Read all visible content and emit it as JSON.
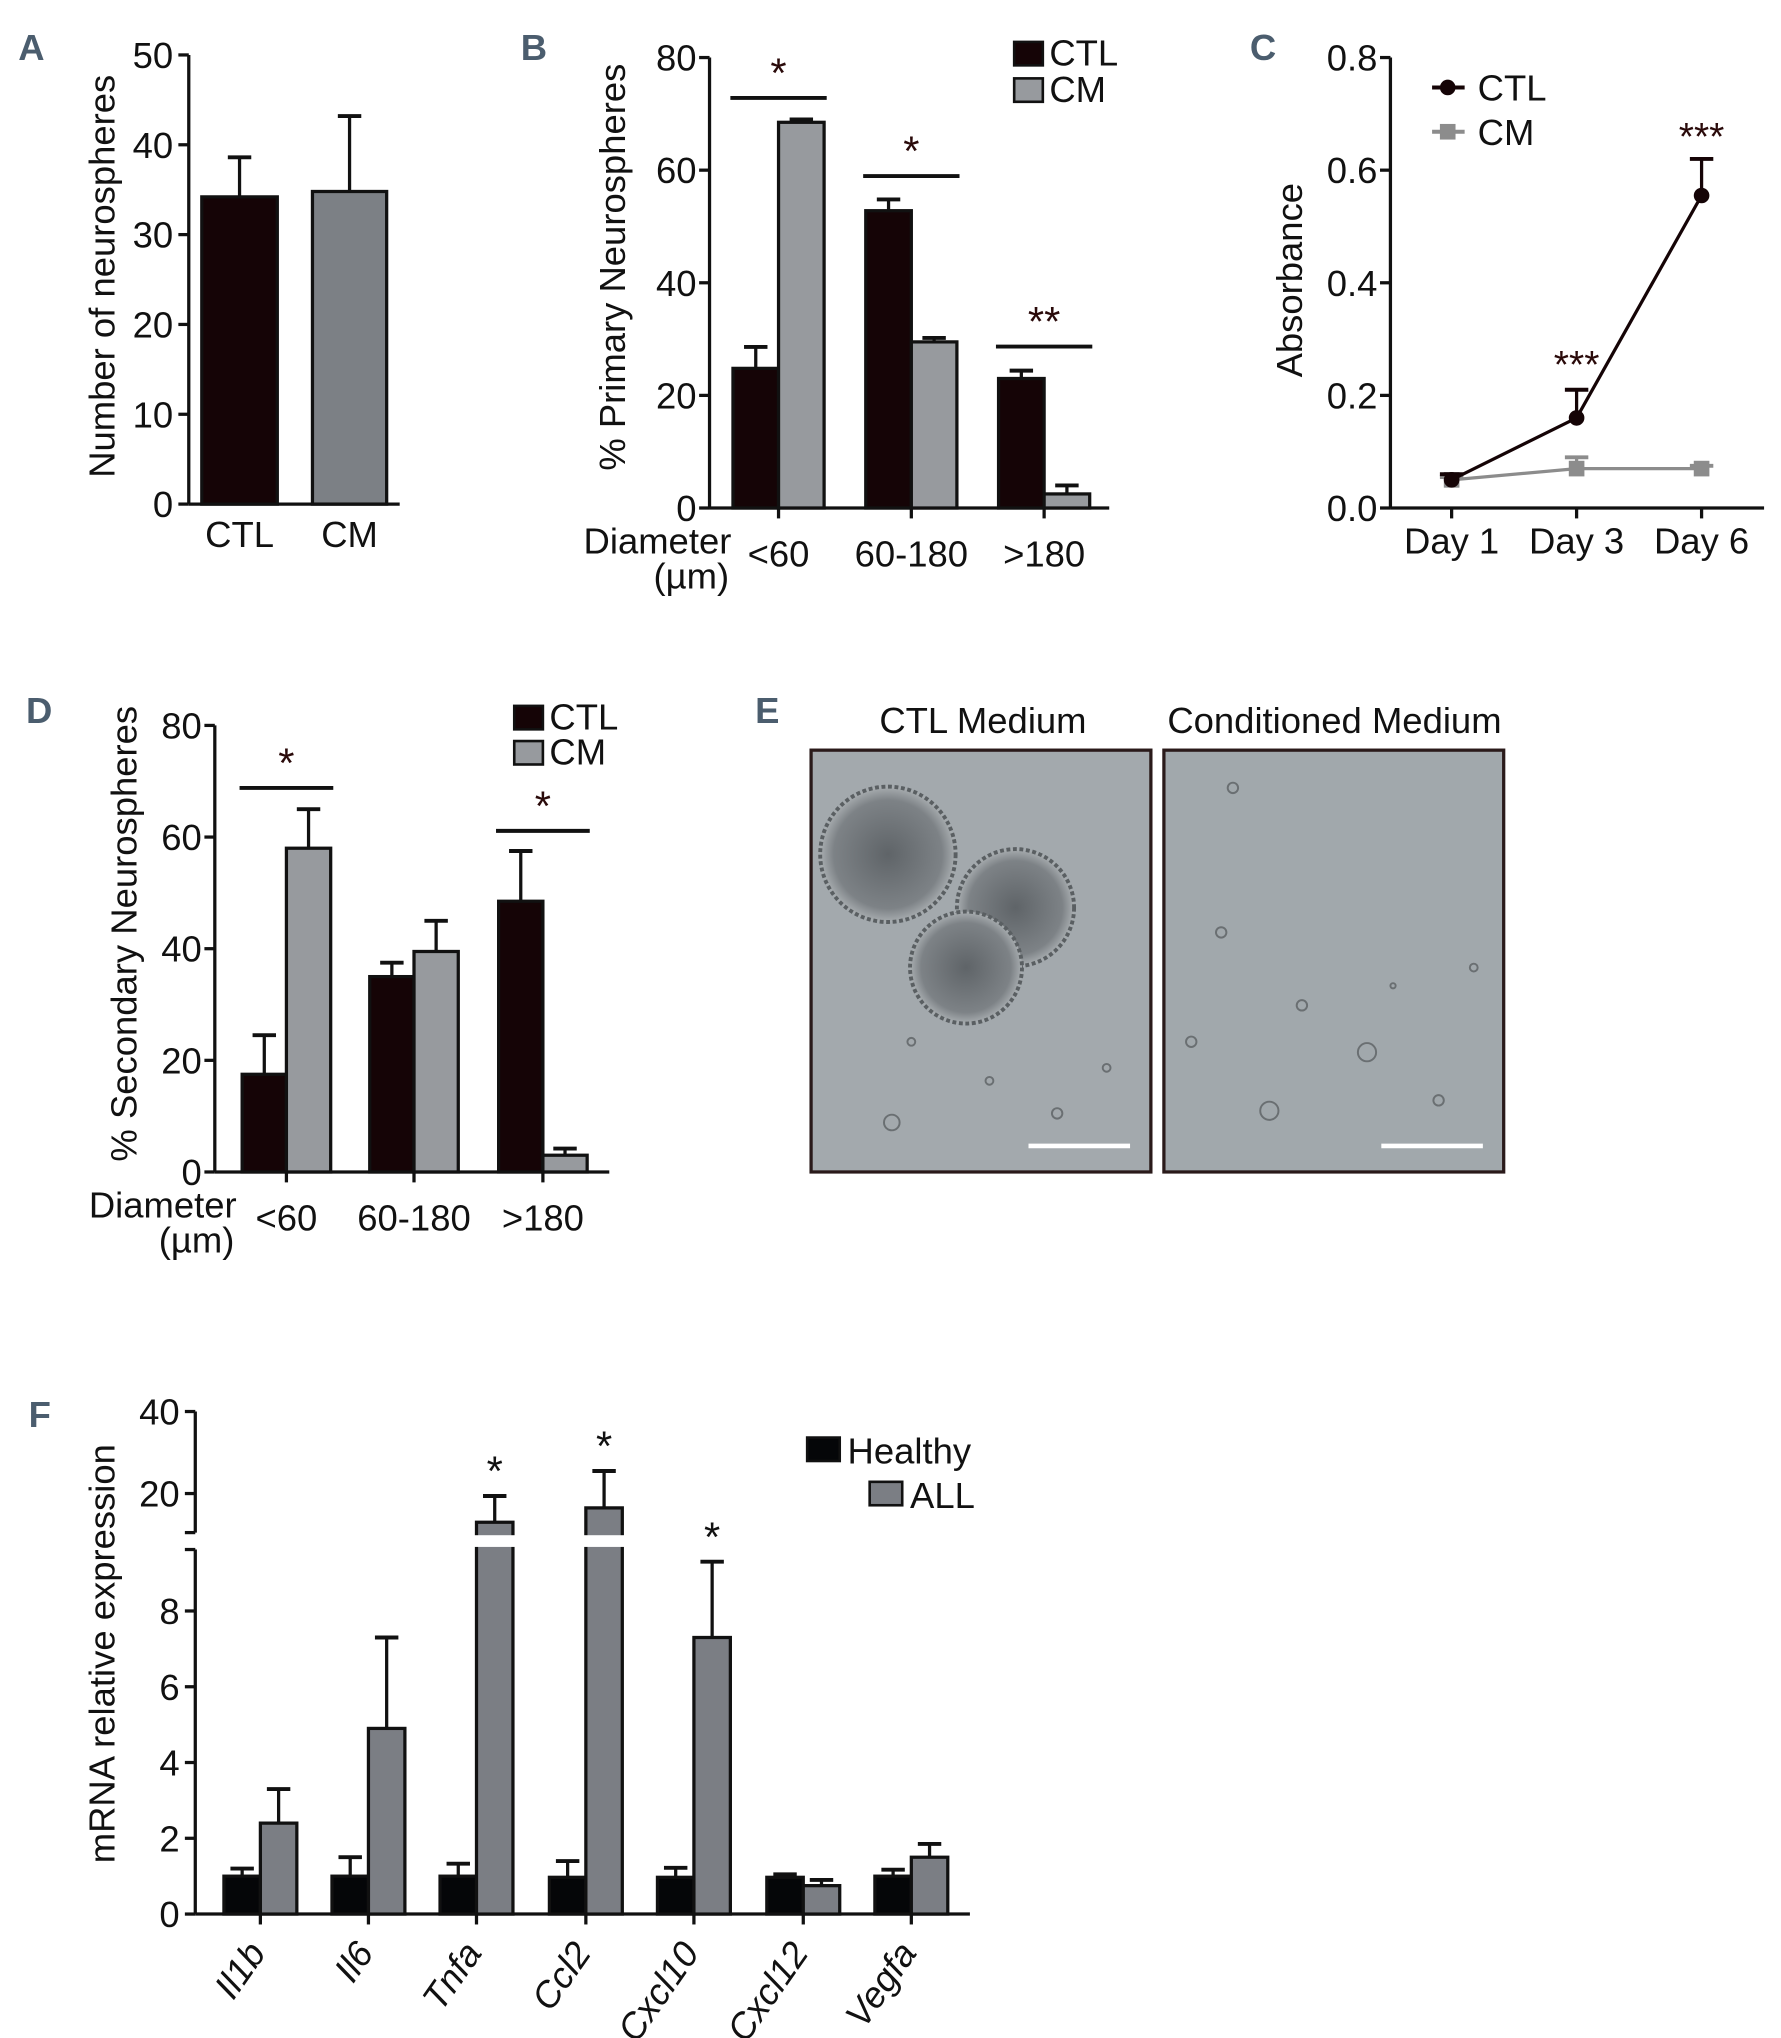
{
  "panel_labels": [
    "A",
    "B",
    "C",
    "D",
    "E",
    "F"
  ],
  "panel_e": {
    "titles": [
      "CTL Medium",
      "Conditioned Medium"
    ],
    "has_scale_bar": true
  },
  "chart_data": [
    {
      "panel": "A",
      "type": "bar",
      "title": "",
      "ylabel": "Number of  neurospheres",
      "xlabel": "",
      "ylim": [
        0,
        50
      ],
      "yticks": [
        "0",
        "10",
        "20",
        "30",
        "40",
        "50"
      ],
      "categories": [
        "CTL",
        "CM"
      ],
      "values": [
        34.2,
        34.8
      ],
      "errors": [
        4.4,
        8.4
      ],
      "colors": [
        "#150406",
        "#7c8085"
      ]
    },
    {
      "panel": "B",
      "type": "bar",
      "ylabel": "% Primary Neurospheres",
      "xlabel_lines": [
        "Diameter",
        "(µm)"
      ],
      "ylim": [
        0,
        80
      ],
      "yticks": [
        "0",
        "20",
        "40",
        "60",
        "80"
      ],
      "categories": [
        "<60",
        "60-180",
        ">180"
      ],
      "series": [
        {
          "name": "CTL",
          "color": "#150406",
          "values": [
            24.8,
            52.8,
            23
          ],
          "errors": [
            3.8,
            2,
            1.4
          ]
        },
        {
          "name": "CM",
          "color": "#979a9e",
          "values": [
            68.5,
            29.5,
            2.5
          ],
          "errors": [
            0.5,
            0.7,
            1.5
          ]
        }
      ],
      "significance": [
        "*",
        "*",
        "**"
      ],
      "legend": "top-right"
    },
    {
      "panel": "C",
      "type": "line",
      "ylabel": "Absorbance",
      "ylim": [
        0,
        0.8
      ],
      "yticks": [
        "0.0",
        "0.2",
        "0.4",
        "0.6",
        "0.8"
      ],
      "x": [
        "Day 1",
        "Day 3",
        "Day 6"
      ],
      "series": [
        {
          "name": "CTL",
          "color": "#150406",
          "marker": "circle",
          "values": [
            0.05,
            0.16,
            0.555
          ],
          "errors": [
            0.01,
            0.05,
            0.065
          ]
        },
        {
          "name": "CM",
          "color": "#8c8c8c",
          "marker": "square",
          "values": [
            0.05,
            0.07,
            0.07
          ],
          "errors": [
            0.005,
            0.02,
            0.005
          ]
        }
      ],
      "significance": [
        "",
        "***",
        "***"
      ],
      "legend": "top-left"
    },
    {
      "panel": "D",
      "type": "bar",
      "ylabel": "% Secondary Neurospheres",
      "xlabel_lines": [
        "Diameter",
        "(µm)"
      ],
      "ylim": [
        0,
        80
      ],
      "yticks": [
        "0",
        "20",
        "40",
        "60",
        "80"
      ],
      "categories": [
        "<60",
        "60-180",
        ">180"
      ],
      "series": [
        {
          "name": "CTL",
          "color": "#150406",
          "values": [
            17.5,
            35,
            48.5
          ],
          "errors": [
            7,
            2.5,
            9
          ]
        },
        {
          "name": "CM",
          "color": "#979a9e",
          "values": [
            58,
            39.5,
            3
          ],
          "errors": [
            7,
            5.5,
            1.2
          ]
        }
      ],
      "significance": [
        "*",
        "",
        "*"
      ],
      "legend": "top-right"
    },
    {
      "panel": "F",
      "type": "bar",
      "ylabel": "mRNA relative expression",
      "ylim": [
        0,
        40
      ],
      "y_break": [
        9.6,
        11
      ],
      "yticks": [
        "0",
        "2",
        "4",
        "6",
        "8",
        "20",
        "40"
      ],
      "categories": [
        "Il1b",
        "Il6",
        "Tnfa",
        "Ccl2",
        "Cxcl10",
        "Cxcl12",
        "Vegfa"
      ],
      "series": [
        {
          "name": "Healthy",
          "color": "#050608",
          "values": [
            1,
            1,
            1,
            0.97,
            0.97,
            0.97,
            1
          ],
          "errors": [
            0.2,
            0.5,
            0.33,
            0.43,
            0.25,
            0.08,
            0.17
          ]
        },
        {
          "name": "ALL",
          "color": "#7b7e84",
          "values": [
            2.4,
            4.9,
            13,
            16.5,
            7.3,
            0.75,
            1.5
          ],
          "errors": [
            0.9,
            2.4,
            6.4,
            9,
            2,
            0.15,
            0.35
          ]
        }
      ],
      "significance": [
        "",
        "",
        "*",
        "*",
        "*",
        "",
        ""
      ],
      "legend": "top-right"
    }
  ]
}
